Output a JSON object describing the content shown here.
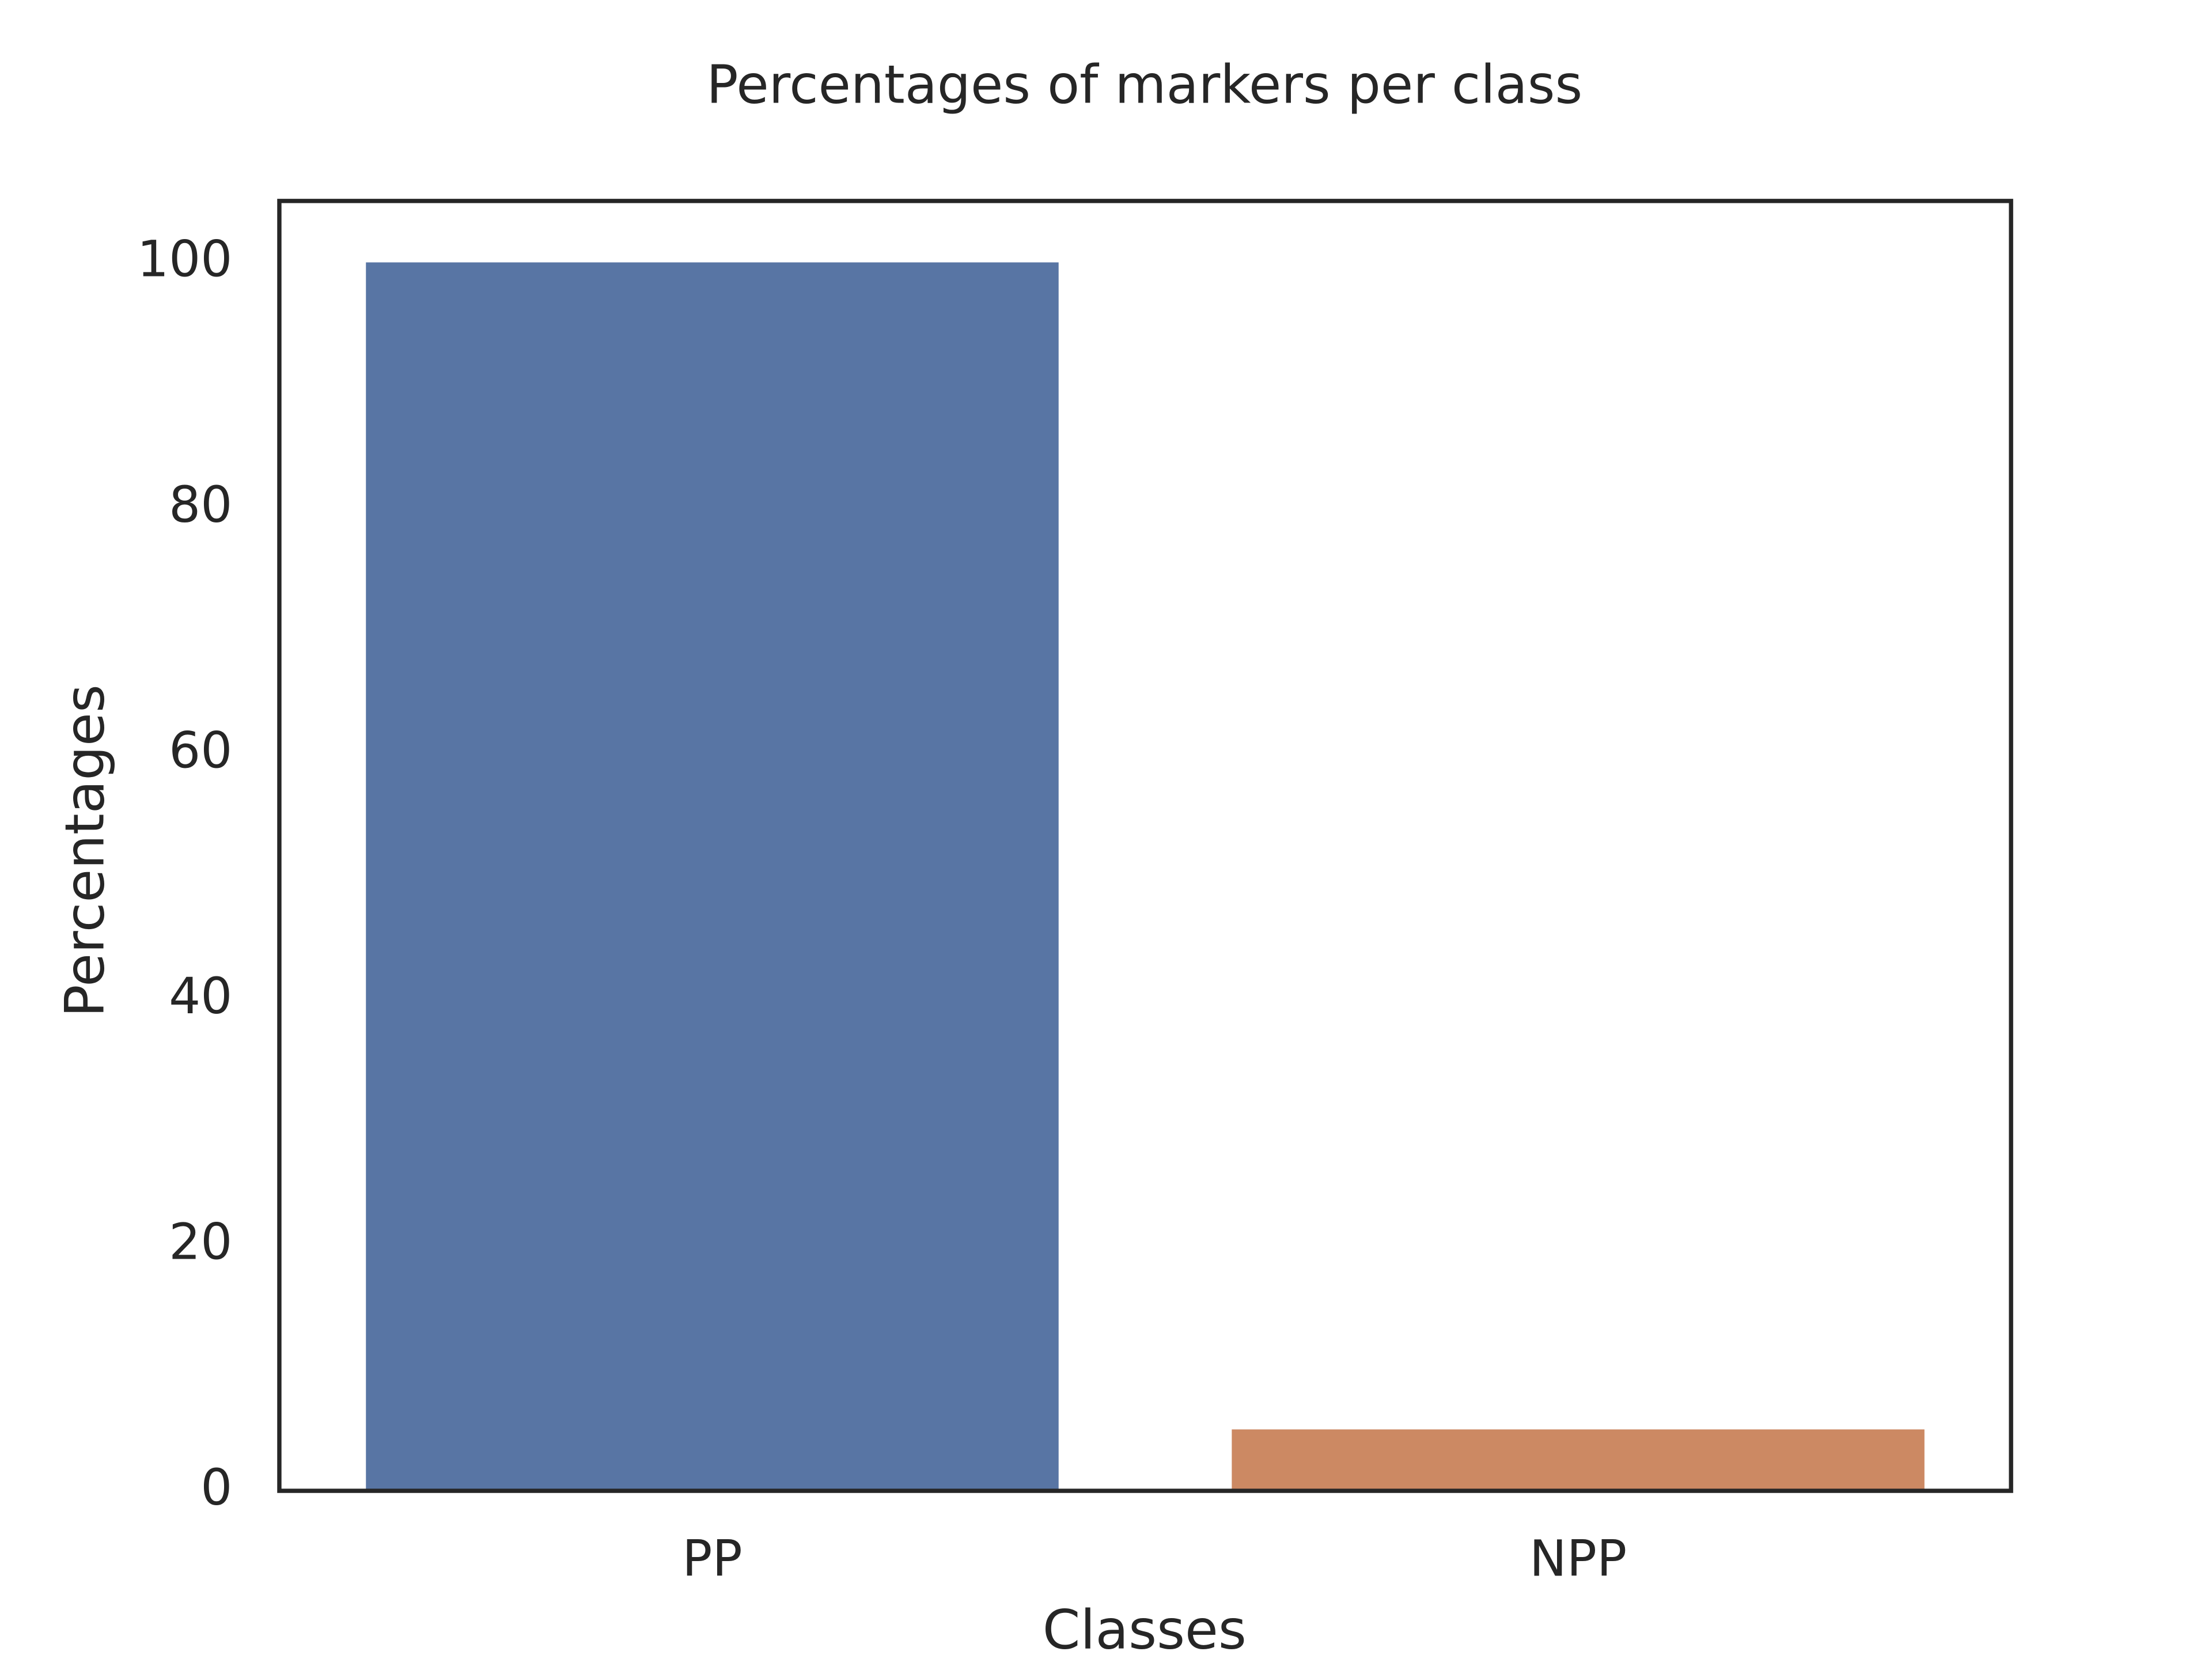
{
  "chart_data": {
    "type": "bar",
    "title": "Percentages of markers per class",
    "x_label": "Classes",
    "y_label": "Percentages",
    "categories": [
      "PP",
      "NPP"
    ],
    "values": [
      100,
      5
    ],
    "colors": [
      "#5875a4",
      "#cc8963"
    ],
    "ylim": [
      0,
      105
    ],
    "yticks": [
      0,
      20,
      40,
      60,
      80,
      100
    ],
    "grid": false
  }
}
